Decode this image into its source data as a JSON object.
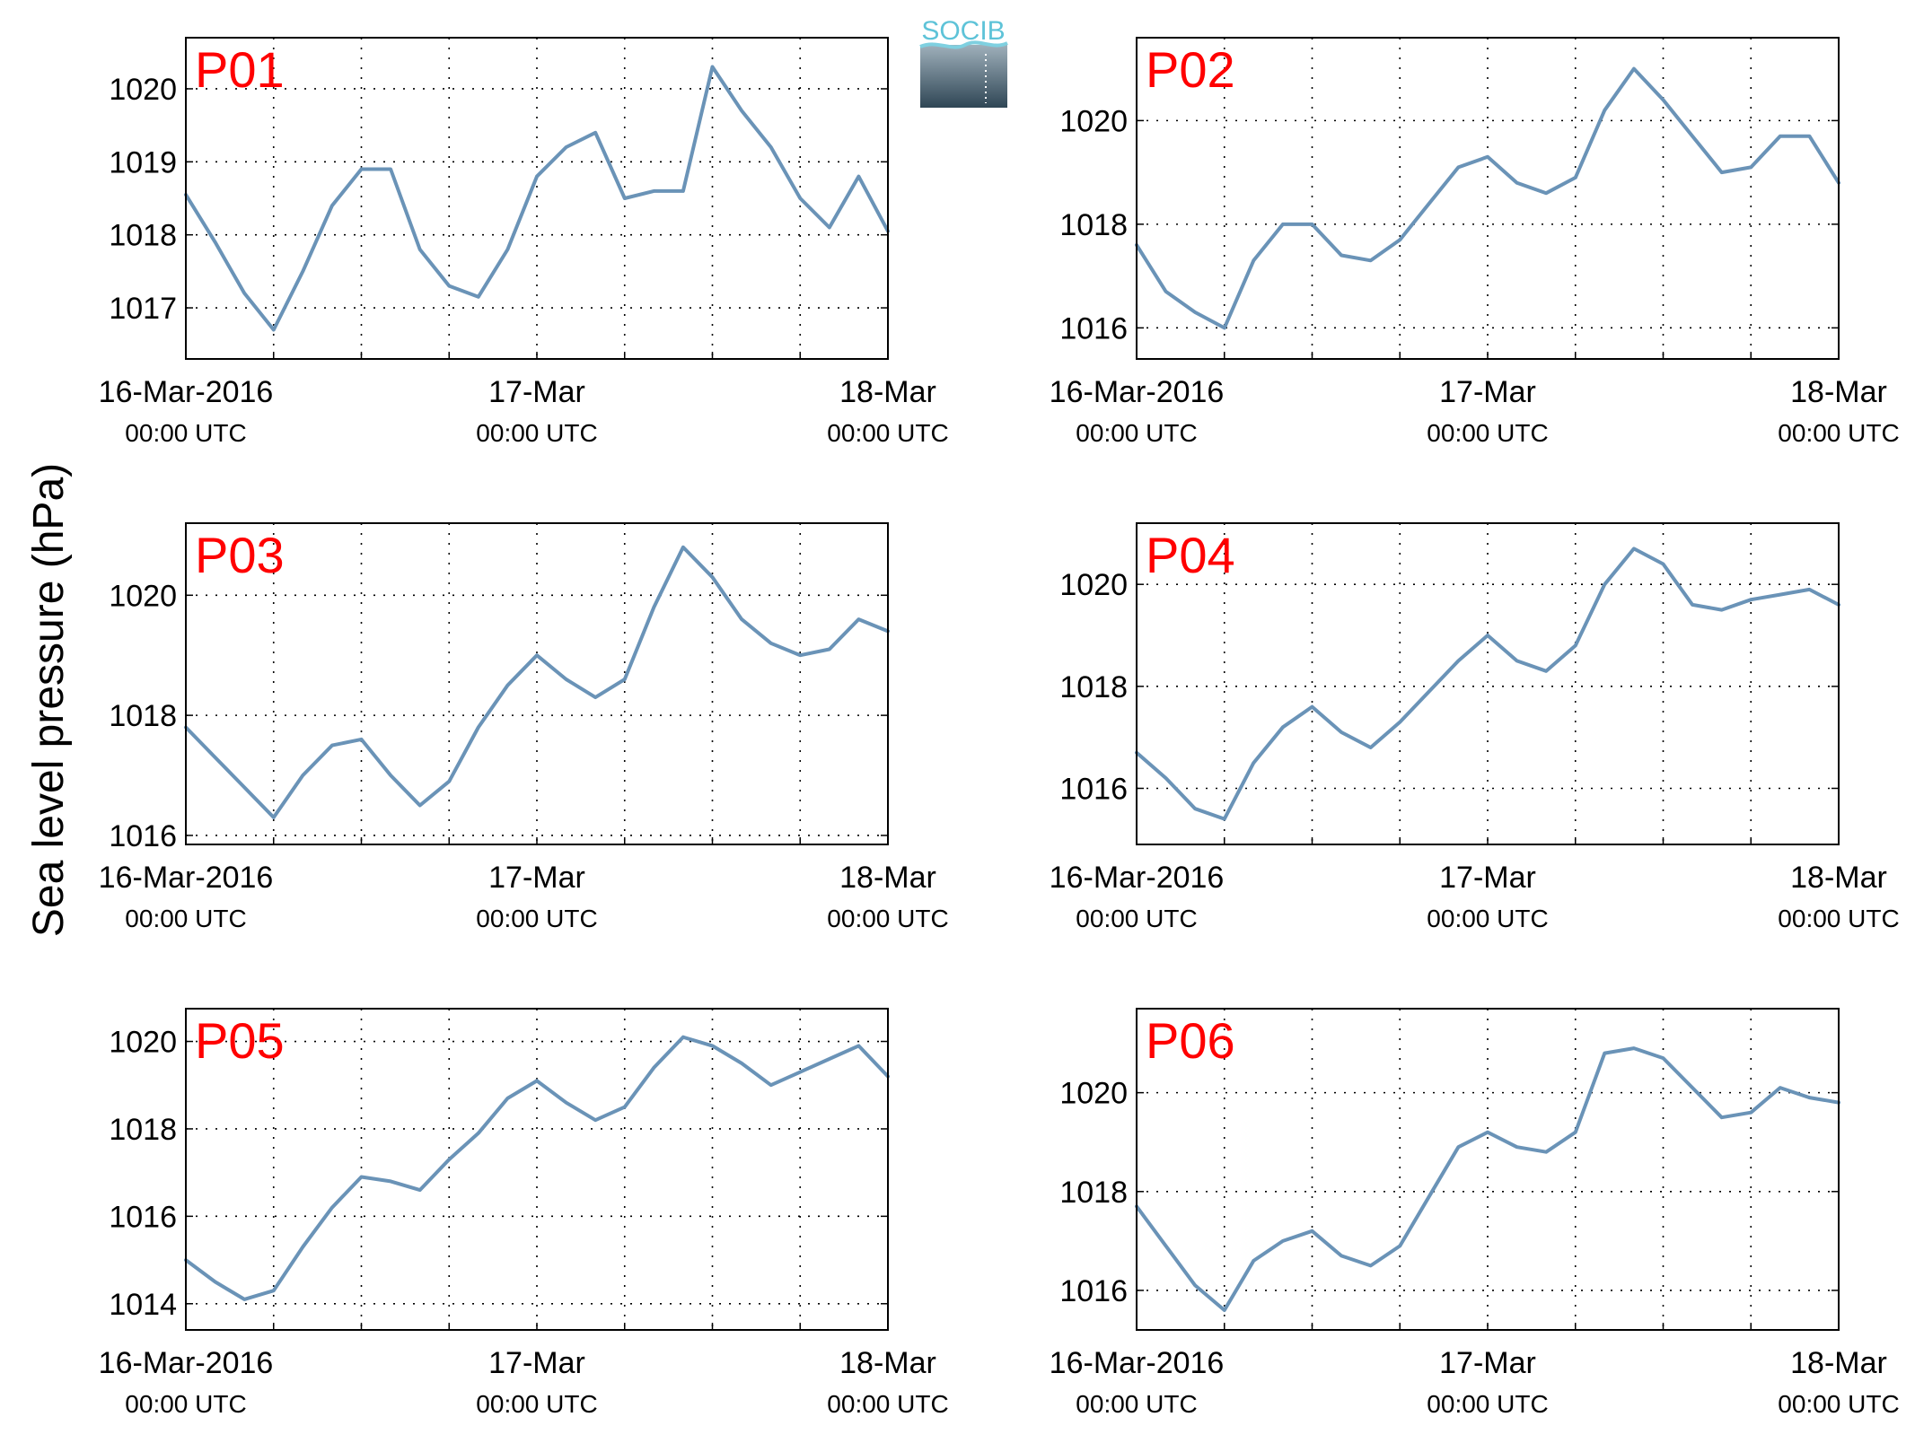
{
  "figure": {
    "ylabel": "Sea level pressure (hPa)",
    "logo_text": "SOCIB",
    "line_color": "#6a93b7",
    "panel_label_color": "#ff0000"
  },
  "chart_data": [
    {
      "type": "line",
      "panel": "P01",
      "x_range": [
        "2016-03-16T00:00Z",
        "2016-03-18T00:00Z"
      ],
      "x_ticks": [
        {
          "main": "16-Mar-2016",
          "sub": "00:00 UTC"
        },
        {
          "main": "17-Mar",
          "sub": "00:00 UTC"
        },
        {
          "main": "18-Mar",
          "sub": "00:00 UTC"
        }
      ],
      "ylim": [
        1016.3,
        1020.7
      ],
      "yticks": [
        1017,
        1018,
        1019,
        1020
      ],
      "grid": true,
      "series": [
        {
          "x_hours": [
            0,
            2,
            4,
            6,
            8,
            10,
            12,
            14,
            16,
            18,
            20,
            22,
            24,
            26,
            28,
            30,
            32,
            34,
            36,
            38,
            40,
            42,
            44,
            46,
            48
          ],
          "values": [
            1018.55,
            1017.9,
            1017.2,
            1016.7,
            1017.5,
            1018.4,
            1018.9,
            1018.9,
            1017.8,
            1017.3,
            1017.15,
            1017.8,
            1018.8,
            1019.2,
            1019.4,
            1018.5,
            1018.6,
            1018.6,
            1020.3,
            1019.7,
            1019.2,
            1018.5,
            1018.1,
            1018.8,
            1018.05
          ]
        }
      ]
    },
    {
      "type": "line",
      "panel": "P02",
      "x_range": [
        "2016-03-16T00:00Z",
        "2016-03-18T00:00Z"
      ],
      "x_ticks": [
        {
          "main": "16-Mar-2016",
          "sub": "00:00 UTC"
        },
        {
          "main": "17-Mar",
          "sub": "00:00 UTC"
        },
        {
          "main": "18-Mar",
          "sub": "00:00 UTC"
        }
      ],
      "ylim": [
        1015.4,
        1021.6
      ],
      "yticks": [
        1016,
        1018,
        1020
      ],
      "grid": true,
      "series": [
        {
          "x_hours": [
            0,
            2,
            4,
            6,
            8,
            10,
            12,
            14,
            16,
            18,
            20,
            22,
            24,
            26,
            28,
            30,
            32,
            34,
            36,
            38,
            40,
            42,
            44,
            46,
            48
          ],
          "values": [
            1017.6,
            1016.7,
            1016.3,
            1016.0,
            1017.3,
            1018.0,
            1018.0,
            1017.4,
            1017.3,
            1017.7,
            1018.4,
            1019.1,
            1019.3,
            1018.8,
            1018.6,
            1018.9,
            1020.2,
            1021.0,
            1020.4,
            1019.7,
            1019.0,
            1019.1,
            1019.7,
            1019.7,
            1018.8
          ]
        }
      ]
    },
    {
      "type": "line",
      "panel": "P03",
      "x_range": [
        "2016-03-16T00:00Z",
        "2016-03-18T00:00Z"
      ],
      "x_ticks": [
        {
          "main": "16-Mar-2016",
          "sub": "00:00 UTC"
        },
        {
          "main": "17-Mar",
          "sub": "00:00 UTC"
        },
        {
          "main": "18-Mar",
          "sub": "00:00 UTC"
        }
      ],
      "ylim": [
        1015.85,
        1021.2
      ],
      "yticks": [
        1016,
        1018,
        1020
      ],
      "grid": true,
      "series": [
        {
          "x_hours": [
            0,
            2,
            4,
            6,
            8,
            10,
            12,
            14,
            16,
            18,
            20,
            22,
            24,
            26,
            28,
            30,
            32,
            34,
            36,
            38,
            40,
            42,
            44,
            46,
            48
          ],
          "values": [
            1017.8,
            1017.3,
            1016.8,
            1016.3,
            1017.0,
            1017.5,
            1017.6,
            1017.0,
            1016.5,
            1016.9,
            1017.8,
            1018.5,
            1019.0,
            1018.6,
            1018.3,
            1018.6,
            1019.8,
            1020.8,
            1020.3,
            1019.6,
            1019.2,
            1019.0,
            1019.1,
            1019.6,
            1019.4
          ]
        }
      ]
    },
    {
      "type": "line",
      "panel": "P04",
      "x_range": [
        "2016-03-16T00:00Z",
        "2016-03-18T00:00Z"
      ],
      "x_ticks": [
        {
          "main": "16-Mar-2016",
          "sub": "00:00 UTC"
        },
        {
          "main": "17-Mar",
          "sub": "00:00 UTC"
        },
        {
          "main": "18-Mar",
          "sub": "00:00 UTC"
        }
      ],
      "ylim": [
        1014.9,
        1021.2
      ],
      "yticks": [
        1016,
        1018,
        1020
      ],
      "grid": true,
      "series": [
        {
          "x_hours": [
            0,
            2,
            4,
            6,
            8,
            10,
            12,
            14,
            16,
            18,
            20,
            22,
            24,
            26,
            28,
            30,
            32,
            34,
            36,
            38,
            40,
            42,
            44,
            46,
            48
          ],
          "values": [
            1016.7,
            1016.2,
            1015.6,
            1015.4,
            1016.5,
            1017.2,
            1017.6,
            1017.1,
            1016.8,
            1017.3,
            1017.9,
            1018.5,
            1019.0,
            1018.5,
            1018.3,
            1018.8,
            1020.0,
            1020.7,
            1020.4,
            1019.6,
            1019.5,
            1019.7,
            1019.8,
            1019.9,
            1019.6
          ]
        }
      ]
    },
    {
      "type": "line",
      "panel": "P05",
      "x_range": [
        "2016-03-16T00:00Z",
        "2016-03-18T00:00Z"
      ],
      "x_ticks": [
        {
          "main": "16-Mar-2016",
          "sub": "00:00 UTC"
        },
        {
          "main": "17-Mar",
          "sub": "00:00 UTC"
        },
        {
          "main": "18-Mar",
          "sub": "00:00 UTC"
        }
      ],
      "ylim": [
        1013.4,
        1020.75
      ],
      "yticks": [
        1014,
        1016,
        1018,
        1020
      ],
      "grid": true,
      "series": [
        {
          "x_hours": [
            0,
            2,
            4,
            6,
            8,
            10,
            12,
            14,
            16,
            18,
            20,
            22,
            24,
            26,
            28,
            30,
            32,
            34,
            36,
            38,
            40,
            42,
            44,
            46,
            48
          ],
          "values": [
            1015.0,
            1014.5,
            1014.1,
            1014.3,
            1015.3,
            1016.2,
            1016.9,
            1016.8,
            1016.6,
            1017.3,
            1017.9,
            1018.7,
            1019.1,
            1018.6,
            1018.2,
            1018.5,
            1019.4,
            1020.1,
            1019.9,
            1019.5,
            1019.0,
            1019.3,
            1019.6,
            1019.9,
            1019.2
          ]
        }
      ]
    },
    {
      "type": "line",
      "panel": "P06",
      "x_range": [
        "2016-03-16T00:00Z",
        "2016-03-18T00:00Z"
      ],
      "x_ticks": [
        {
          "main": "16-Mar-2016",
          "sub": "00:00 UTC"
        },
        {
          "main": "17-Mar",
          "sub": "00:00 UTC"
        },
        {
          "main": "18-Mar",
          "sub": "00:00 UTC"
        }
      ],
      "ylim": [
        1015.2,
        1021.7
      ],
      "yticks": [
        1016,
        1018,
        1020
      ],
      "grid": true,
      "series": [
        {
          "x_hours": [
            0,
            2,
            4,
            6,
            8,
            10,
            12,
            14,
            16,
            18,
            20,
            22,
            24,
            26,
            28,
            30,
            32,
            34,
            36,
            38,
            40,
            42,
            44,
            46,
            48
          ],
          "values": [
            1017.7,
            1016.9,
            1016.1,
            1015.6,
            1016.6,
            1017.0,
            1017.2,
            1016.7,
            1016.5,
            1016.9,
            1017.9,
            1018.9,
            1019.2,
            1018.9,
            1018.8,
            1019.2,
            1020.8,
            1020.9,
            1020.7,
            1020.1,
            1019.5,
            1019.6,
            1020.1,
            1019.9,
            1019.8
          ]
        }
      ]
    }
  ]
}
